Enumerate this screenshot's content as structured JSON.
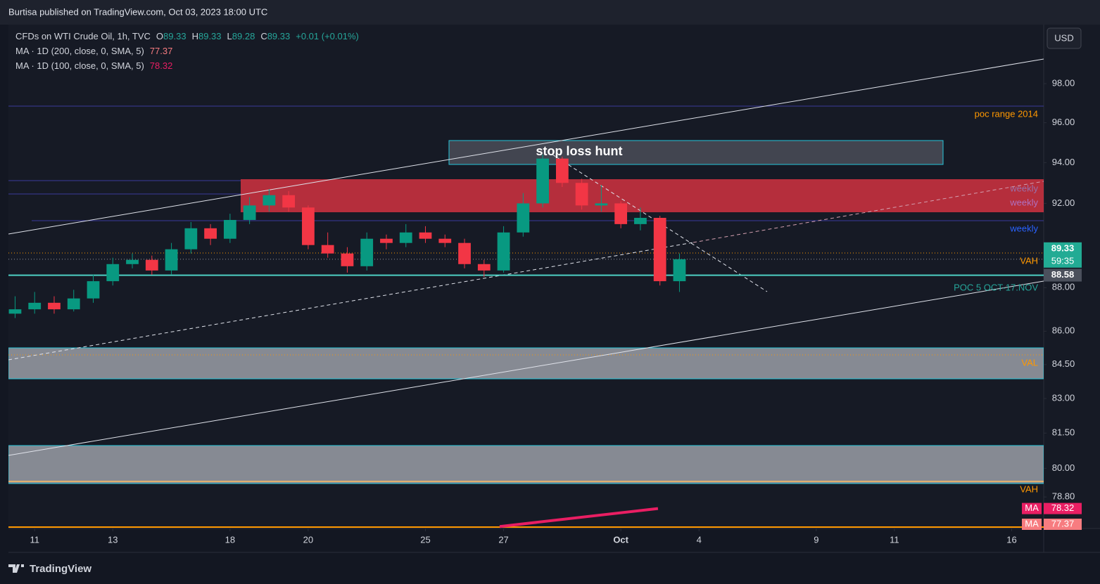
{
  "header": {
    "published": "Burtisa published on TradingView.com, Oct 03, 2023 18:00 UTC",
    "brand": "TradingView",
    "currency_button": "USD"
  },
  "chart_data": {
    "type": "candlestick",
    "title": "CFDs on WTI Crude Oil, 1h, TVC",
    "ohlc_legend": [
      {
        "label": "O",
        "value": 89.33
      },
      {
        "label": "H",
        "value": 89.33
      },
      {
        "label": "L",
        "value": 89.28
      },
      {
        "label": "C",
        "value": 89.33
      }
    ],
    "change": "+0.01 (+0.01%)",
    "log_scale": true,
    "up_color": "#089981",
    "down_color": "#f23645",
    "x": [
      -0.5,
      0,
      0.5,
      1,
      1.5,
      2,
      2.5,
      3,
      3.5,
      4,
      4.5,
      5,
      5.5,
      6,
      6.5,
      7,
      7.5,
      8,
      8.5,
      9,
      9.5,
      10,
      10.5,
      11,
      11.5,
      12,
      12.5,
      13,
      13.5,
      14,
      14.5,
      15,
      15.5,
      16,
      16.5
    ],
    "open": [
      86.8,
      87.0,
      87.3,
      87.0,
      87.5,
      88.3,
      89.1,
      89.3,
      88.8,
      89.8,
      90.8,
      90.3,
      91.2,
      91.9,
      92.4,
      91.8,
      90.0,
      89.6,
      89.0,
      90.3,
      90.1,
      90.6,
      90.3,
      90.1,
      89.1,
      88.8,
      90.6,
      92.0,
      94.2,
      93.0,
      91.9,
      92.0,
      91.0,
      91.3,
      88.3
    ],
    "high": [
      87.6,
      87.8,
      87.6,
      87.9,
      88.6,
      89.4,
      89.6,
      89.5,
      90.1,
      91.1,
      91.0,
      91.5,
      92.3,
      92.7,
      92.6,
      91.9,
      90.6,
      89.9,
      90.6,
      90.5,
      91.0,
      90.9,
      90.5,
      90.3,
      89.3,
      90.9,
      92.5,
      94.4,
      94.3,
      93.2,
      92.9,
      92.1,
      91.8,
      91.4,
      89.6
    ],
    "low": [
      86.6,
      86.8,
      86.8,
      86.9,
      87.3,
      88.1,
      88.9,
      88.6,
      88.6,
      89.6,
      90.0,
      90.1,
      91.0,
      91.6,
      91.6,
      89.8,
      89.4,
      88.7,
      88.8,
      89.8,
      89.9,
      90.1,
      89.9,
      88.9,
      88.5,
      88.7,
      90.4,
      91.8,
      92.8,
      91.7,
      91.6,
      90.8,
      90.7,
      88.1,
      87.8
    ],
    "close": [
      87.0,
      87.3,
      87.0,
      87.5,
      88.3,
      89.1,
      89.3,
      88.8,
      89.8,
      90.8,
      90.3,
      91.2,
      91.9,
      92.4,
      91.8,
      90.0,
      89.6,
      89.0,
      90.3,
      90.1,
      90.6,
      90.3,
      90.1,
      89.1,
      88.8,
      90.6,
      92.0,
      94.2,
      93.0,
      91.9,
      92.0,
      91.0,
      91.3,
      88.3,
      89.33
    ],
    "xlim": [
      -0.67,
      25.82
    ],
    "xticks": [
      {
        "value": 0,
        "label": "11"
      },
      {
        "value": 2,
        "label": "13"
      },
      {
        "value": 5,
        "label": "18"
      },
      {
        "value": 7,
        "label": "20"
      },
      {
        "value": 10,
        "label": "25"
      },
      {
        "value": 12,
        "label": "27"
      },
      {
        "value": 15,
        "label": "Oct"
      },
      {
        "value": 17,
        "label": "4"
      },
      {
        "value": 20,
        "label": "9"
      },
      {
        "value": 22,
        "label": "11"
      },
      {
        "value": 25,
        "label": "16"
      }
    ],
    "ylim": [
      77.5,
      101.1
    ],
    "yticks": [
      {
        "value": 98,
        "label": "98.00"
      },
      {
        "value": 96,
        "label": "96.00"
      },
      {
        "value": 94,
        "label": "94.00"
      },
      {
        "value": 92,
        "label": "92.00"
      },
      {
        "value": 88,
        "label": "88.00"
      },
      {
        "value": 86,
        "label": "86.00"
      },
      {
        "value": 84.5,
        "label": "84.50"
      },
      {
        "value": 83,
        "label": "83.00"
      },
      {
        "value": 81.5,
        "label": "81.50"
      },
      {
        "value": 80,
        "label": "80.00"
      },
      {
        "value": 78.8,
        "label": "78.80"
      }
    ],
    "moving_averages": [
      {
        "name": "MA · 1D (200, close, 0, SMA, 5)",
        "tag": "MA",
        "color": "#f77c80",
        "x": [
          11.9,
          15.95
        ],
        "values": [
          77.3,
          77.37
        ],
        "last": 77.37
      },
      {
        "name": "MA · 1D (100, close, 0, SMA, 5)",
        "tag": "MA",
        "color": "#e91e63",
        "x": [
          11.9,
          15.95
        ],
        "values": [
          77.58,
          78.32
        ],
        "last": 78.32
      }
    ],
    "last_price": {
      "value": 89.33,
      "countdown": "59:35",
      "color": "#22ab94"
    },
    "levels": [
      {
        "value": 88.58,
        "color": "#4dd0c4"
      }
    ],
    "annotations": {
      "stop_loss": "stop loss hunt",
      "poc_2014": "poc range 2014",
      "weekly_1": "weekly",
      "weekly_2": "weekly",
      "weekly_3": "weekly",
      "vah_1": "VAH",
      "poc": "POC 5 OCT-17.NOV",
      "val": "VAL",
      "vah_2": "VAH"
    }
  }
}
